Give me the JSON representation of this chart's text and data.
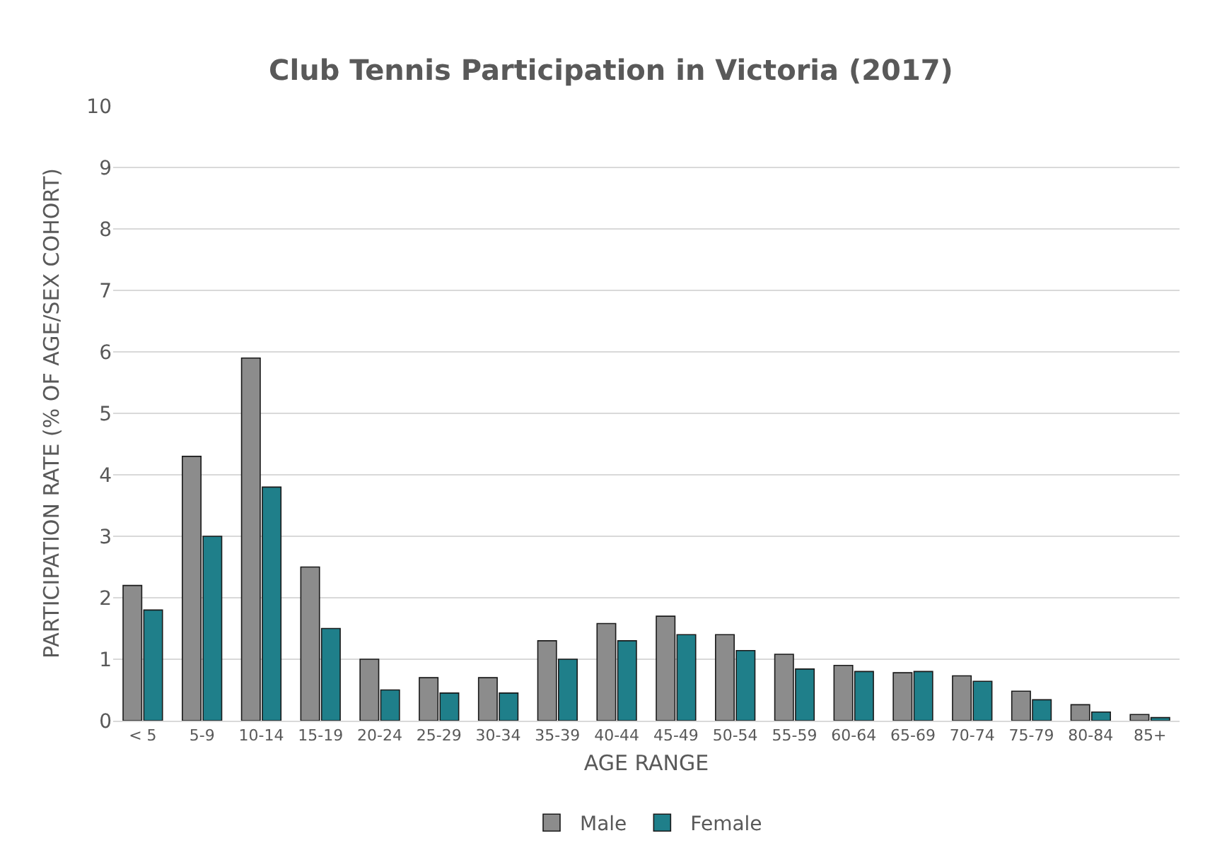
{
  "chart_data": {
    "type": "bar",
    "title": "Club Tennis Participation in Victoria (2017)",
    "xlabel": "AGE RANGE",
    "ylabel": "PARTICIPATION RATE (% OF AGE/SEX COHORT)",
    "categories": [
      "< 5",
      "5-9",
      "10-14",
      "15-19",
      "20-24",
      "25-29",
      "30-34",
      "35-39",
      "40-44",
      "45-49",
      "50-54",
      "55-59",
      "60-64",
      "65-69",
      "70-74",
      "75-79",
      "80-84",
      "85+"
    ],
    "series": [
      {
        "name": "Male",
        "color": "#8c8c8c",
        "values": [
          2.2,
          4.3,
          5.9,
          2.5,
          1.0,
          0.7,
          0.7,
          1.3,
          1.58,
          1.7,
          1.4,
          1.08,
          0.9,
          0.78,
          0.73,
          0.48,
          0.26,
          0.1
        ]
      },
      {
        "name": "Female",
        "color": "#1f7f8a",
        "values": [
          1.8,
          3.0,
          3.8,
          1.5,
          0.5,
          0.45,
          0.45,
          1.0,
          1.3,
          1.4,
          1.14,
          0.84,
          0.8,
          0.8,
          0.64,
          0.34,
          0.14,
          0.05
        ]
      }
    ],
    "ylim": [
      0,
      10
    ],
    "yticks": [
      0,
      1,
      2,
      3,
      4,
      5,
      6,
      7,
      8,
      9,
      10
    ],
    "grid": "y",
    "legend": "bottom"
  }
}
